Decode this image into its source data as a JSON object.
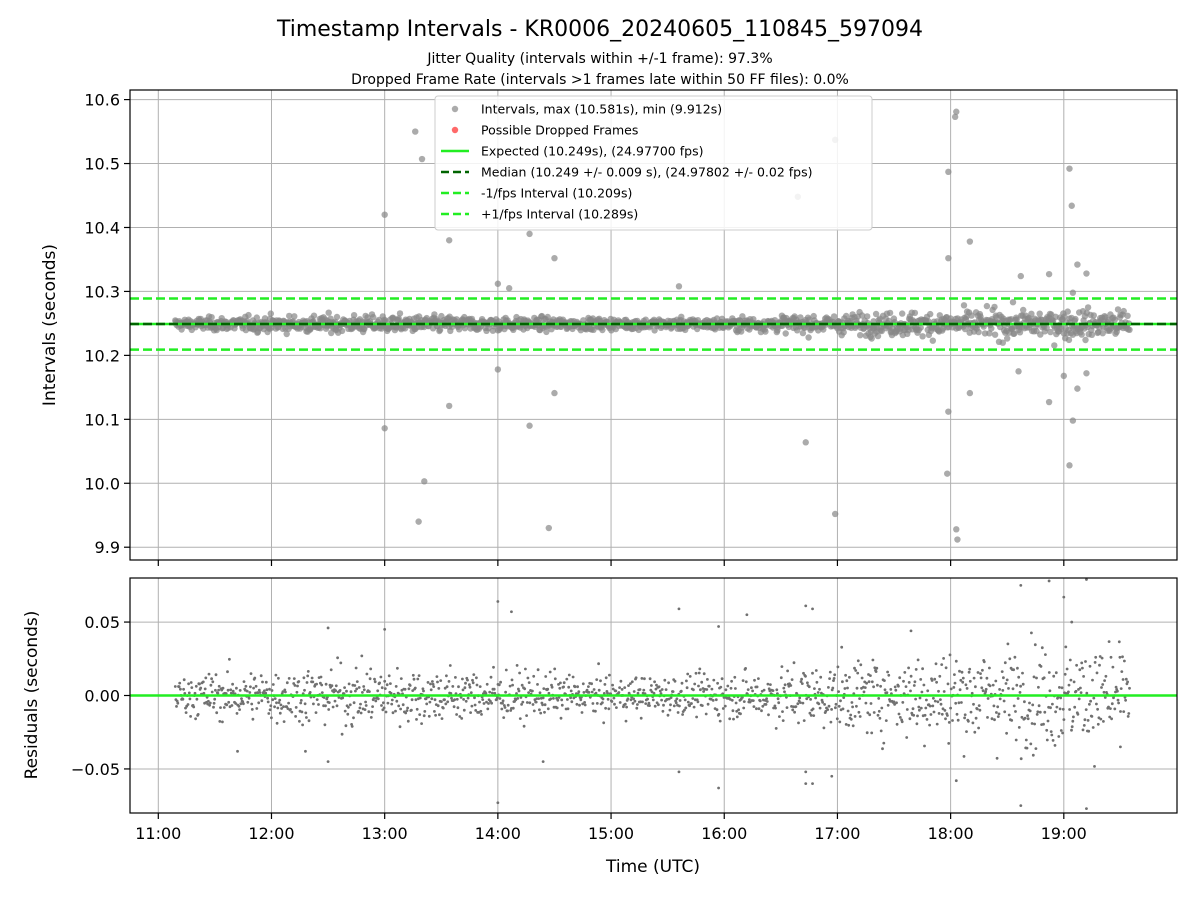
{
  "chart_data": {
    "type": "scatter",
    "title": "Timestamp Intervals - KR0006_20240605_110845_597094",
    "subtitle_lines": [
      "Jitter Quality (intervals within +/-1 frame): 97.3%",
      "Dropped Frame Rate (intervals >1 frames late within 50 FF files): 0.0%"
    ],
    "xlabel": "Time (UTC)",
    "x_ticks": [
      "11:00",
      "12:00",
      "13:00",
      "14:00",
      "15:00",
      "16:00",
      "17:00",
      "18:00",
      "19:00"
    ],
    "xlim_hours": [
      10.75,
      20.0
    ],
    "data_range_hours": [
      11.15,
      19.58
    ],
    "grid": true,
    "colors": {
      "points": "#808080",
      "dropped": "#ff4444",
      "expected": "#22ee22",
      "median": "#006400",
      "fps_interval": "#22ee22"
    },
    "panels": [
      {
        "id": "intervals",
        "ylabel": "Intervals (seconds)",
        "ylim": [
          9.88,
          10.615
        ],
        "y_ticks": [
          "9.9",
          "10.0",
          "10.1",
          "10.2",
          "10.3",
          "10.4",
          "10.5",
          "10.6"
        ],
        "y_tick_values": [
          9.9,
          10.0,
          10.1,
          10.2,
          10.3,
          10.4,
          10.5,
          10.6
        ],
        "legend_position": "top-center",
        "legend": [
          {
            "label": "Intervals, max (10.581s), min (9.912s)",
            "style": "gray-dot"
          },
          {
            "label": "Possible Dropped Frames",
            "style": "red-dot"
          },
          {
            "label": "Expected (10.249s), (24.97700 fps)",
            "style": "green-solid"
          },
          {
            "label": "Median (10.249 +/- 0.009 s), (24.97802 +/- 0.02 fps)",
            "style": "darkgreen-dashed"
          },
          {
            "label": "-1/fps Interval (10.209s)",
            "style": "green-dashed"
          },
          {
            "label": "+1/fps Interval (10.289s)",
            "style": "green-dashed"
          }
        ],
        "lines": {
          "expected": 10.249,
          "median": 10.249,
          "minus_fps": 10.209,
          "plus_fps": 10.289
        },
        "center": 10.249,
        "point_count": 1500,
        "outliers": [
          [
            13.27,
            10.55
          ],
          [
            13.33,
            10.507
          ],
          [
            13.0,
            10.42
          ],
          [
            13.57,
            10.38
          ],
          [
            14.0,
            10.312
          ],
          [
            14.1,
            10.305
          ],
          [
            14.28,
            10.39
          ],
          [
            14.5,
            10.352
          ],
          [
            15.6,
            10.308
          ],
          [
            16.65,
            10.448
          ],
          [
            16.98,
            10.537
          ],
          [
            17.98,
            10.487
          ],
          [
            18.05,
            10.581
          ],
          [
            18.04,
            10.573
          ],
          [
            17.98,
            10.352
          ],
          [
            18.17,
            10.378
          ],
          [
            19.05,
            10.492
          ],
          [
            19.07,
            10.434
          ],
          [
            19.12,
            10.342
          ],
          [
            19.2,
            10.328
          ],
          [
            19.08,
            10.298
          ],
          [
            18.62,
            10.324
          ],
          [
            18.87,
            10.327
          ],
          [
            13.0,
            10.086
          ],
          [
            13.35,
            10.003
          ],
          [
            13.3,
            9.94
          ],
          [
            13.57,
            10.121
          ],
          [
            14.0,
            10.178
          ],
          [
            14.28,
            10.09
          ],
          [
            14.45,
            9.93
          ],
          [
            14.5,
            10.141
          ],
          [
            16.72,
            10.064
          ],
          [
            16.98,
            9.952
          ],
          [
            17.98,
            10.112
          ],
          [
            17.97,
            10.015
          ],
          [
            18.05,
            9.928
          ],
          [
            18.06,
            9.912
          ],
          [
            18.17,
            10.141
          ],
          [
            18.87,
            10.127
          ],
          [
            19.0,
            10.168
          ],
          [
            19.05,
            10.028
          ],
          [
            19.08,
            10.098
          ],
          [
            19.12,
            10.148
          ],
          [
            19.2,
            10.172
          ],
          [
            18.6,
            10.175
          ]
        ]
      },
      {
        "id": "residuals",
        "ylabel": "Residuals (seconds)",
        "ylim": [
          -0.08,
          0.08
        ],
        "y_ticks": [
          "−0.05",
          "0.00",
          "0.05"
        ],
        "y_tick_values": [
          -0.05,
          0.0,
          0.05
        ],
        "center": 0.0,
        "zero_line": 0.0,
        "point_count": 1500,
        "outliers": [
          [
            14.0,
            0.064
          ],
          [
            14.12,
            0.057
          ],
          [
            13.0,
            0.045
          ],
          [
            12.5,
            0.046
          ],
          [
            14.0,
            -0.073
          ],
          [
            15.6,
            0.059
          ],
          [
            16.2,
            0.055
          ],
          [
            16.72,
            0.061
          ],
          [
            16.78,
            0.059
          ],
          [
            16.72,
            -0.06
          ],
          [
            16.72,
            -0.052
          ],
          [
            16.78,
            -0.06
          ],
          [
            17.65,
            0.044
          ],
          [
            18.05,
            -0.058
          ],
          [
            18.62,
            0.075
          ],
          [
            18.87,
            0.078
          ],
          [
            19.0,
            0.067
          ],
          [
            19.2,
            0.079
          ],
          [
            18.62,
            -0.075
          ],
          [
            19.2,
            -0.077
          ],
          [
            19.07,
            0.05
          ],
          [
            12.5,
            -0.045
          ],
          [
            12.3,
            -0.038
          ],
          [
            11.7,
            -0.038
          ],
          [
            15.95,
            0.047
          ],
          [
            15.95,
            -0.063
          ],
          [
            14.4,
            -0.045
          ],
          [
            15.6,
            -0.052
          ],
          [
            16.95,
            -0.055
          ],
          [
            19.5,
            -0.035
          ]
        ]
      }
    ]
  }
}
